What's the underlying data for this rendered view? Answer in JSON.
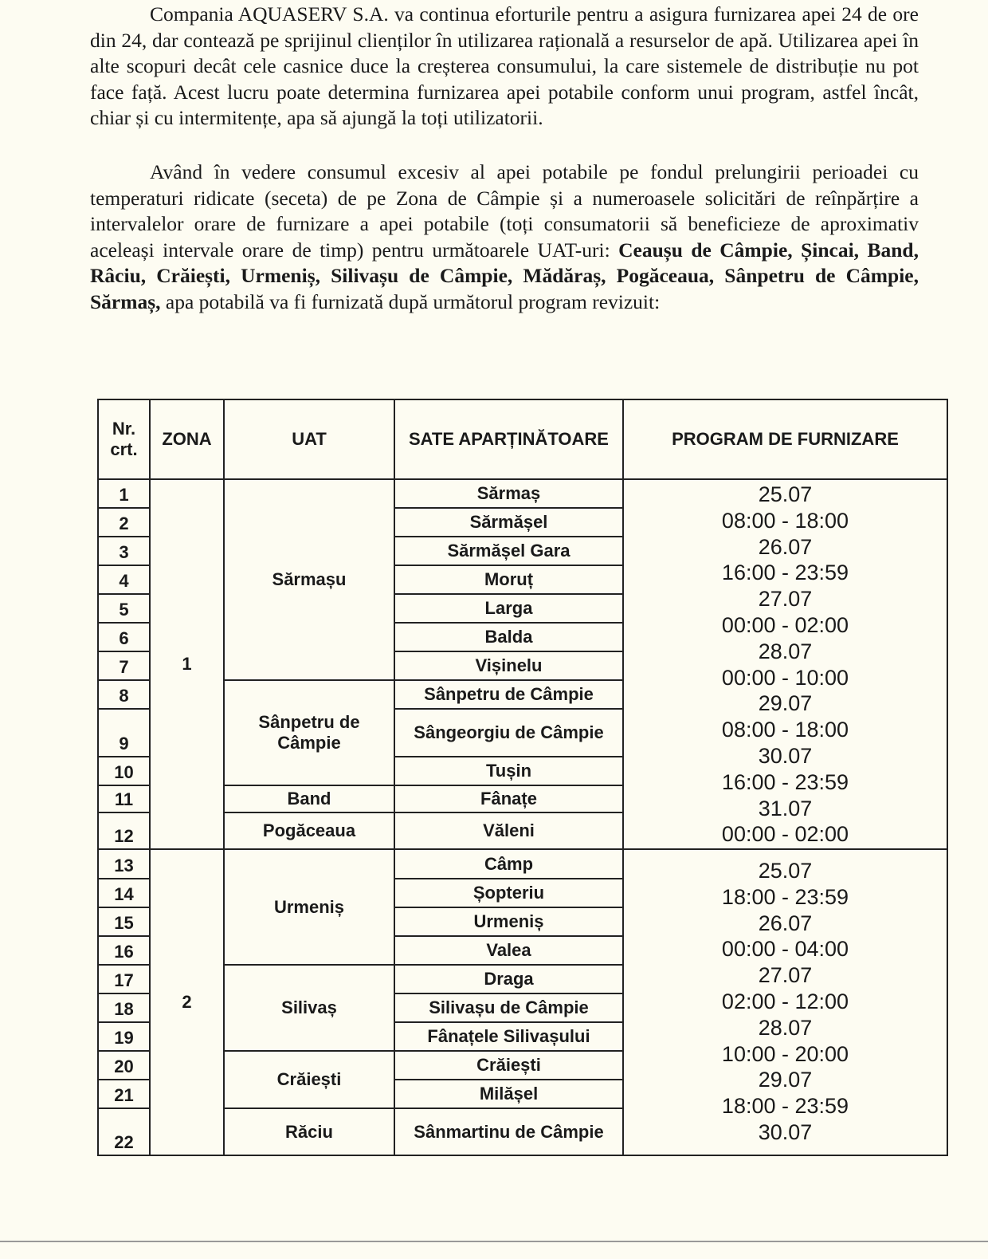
{
  "paragraphs": {
    "p1": "Compania AQUASERV S.A. va continua eforturile pentru a asigura furnizarea apei 24 de ore din 24, dar contează pe sprijinul clienților în utilizarea rațională a resurselor de apă. Utilizarea apei în alte scopuri decât cele casnice duce la creșterea consumului, la care sistemele de distribuție nu pot face față. Acest lucru poate determina furnizarea apei potabile conform unui program, astfel încât, chiar și cu intermitențe, apa să ajungă la toți utilizatorii.",
    "p2_start": "Având în vedere consumul excesiv al apei potabile pe fondul prelungirii perioadei cu temperaturi ridicate (seceta) de pe Zona de Câmpie și a numeroasele solicitări de reînpărțire a intervalelor orare de furnizare a apei potabile (toți consumatorii să beneficieze de aproximativ aceleași intervale orare de timp) pentru următoarele UAT-uri: ",
    "p2_bold": "Ceaușu de Câmpie, Șincai, Band, Râciu, Crăiești, Urmeniș, Silivașu de Câmpie, Mădăraș, Pogăceaua, Sânpetru de Câmpie, Sărmaș,",
    "p2_end": " apa potabilă va fi furnizată după următorul program revizuit:"
  },
  "table": {
    "headers": [
      "Nr. crt.",
      "ZONA",
      "UAT",
      "SATE APARȚINĂTOARE",
      "PROGRAM DE FURNIZARE"
    ],
    "zones": [
      {
        "zona": "1",
        "uats": [
          {
            "name": "Sărmașu",
            "sate": [
              "Sărmaș",
              "Sărmășel",
              "Sărmășel Gara",
              "Moruț",
              "Larga",
              "Balda",
              "Vișinelu"
            ]
          },
          {
            "name": "Sânpetru de Câmpie",
            "sate": [
              "Sânpetru de Câmpie",
              "Sângeorgiu de Câmpie",
              "Tușin"
            ]
          },
          {
            "name": "Band",
            "sate": [
              "Fânațe"
            ]
          },
          {
            "name": "Pogăceaua",
            "sate": [
              "Văleni"
            ]
          }
        ],
        "program": [
          "25.07",
          "08:00 - 18:00",
          "26.07",
          "16:00 - 23:59",
          "27.07",
          "00:00 - 02:00",
          "28.07",
          "00:00 - 10:00",
          "29.07",
          "08:00 - 18:00",
          "30.07",
          "16:00 - 23:59",
          "31.07",
          "00:00 - 02:00"
        ]
      },
      {
        "zona": "2",
        "uats": [
          {
            "name": "Urmeniș",
            "sate": [
              "Câmp",
              "Șopteriu",
              "Urmeniș",
              "Valea"
            ]
          },
          {
            "name": "Silivaș",
            "sate": [
              "Draga",
              "Silivașu de Câmpie",
              "Fânațele Silivașului"
            ]
          },
          {
            "name": "Crăiești",
            "sate": [
              "Crăiești",
              "Milășel"
            ]
          },
          {
            "name": "Răciu",
            "sate": [
              "Sânmartinu de Câmpie"
            ]
          }
        ],
        "program": [
          "25.07",
          "18:00 - 23:59",
          "26.07",
          "00:00 - 04:00",
          "27.07",
          "02:00 - 12:00",
          "28.07",
          "10:00 - 20:00",
          "29.07",
          "18:00 - 23:59",
          "30.07"
        ]
      }
    ]
  }
}
